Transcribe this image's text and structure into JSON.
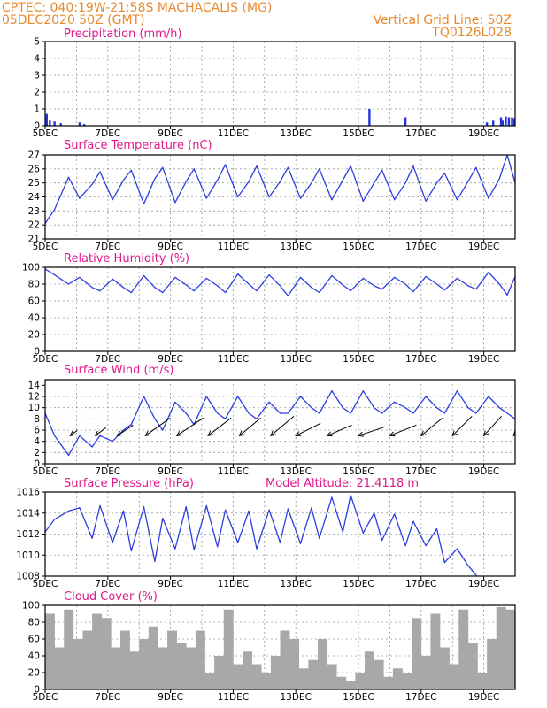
{
  "header": {
    "line1_left": "CPTEC:   040:19W-21:58S   MACHACALIS (MG)",
    "line2_left": "05DEC2020 50Z (GMT)",
    "line1_right": "Vertical Grid Line: 50Z",
    "line2_right": "TQ0126L028"
  },
  "colors": {
    "header": "#e8892a",
    "panel_title": "#e0198c",
    "series_line": "#2a3fe0",
    "precip_bar": "#2233dd",
    "cloud_fill": "#a8a8a8"
  },
  "chart_data": [
    {
      "type": "bar",
      "title": "Precipitation (mm/h)",
      "ylim": [
        0,
        5
      ],
      "yticks": [
        "0",
        "1",
        "2",
        "3",
        "4",
        "5"
      ],
      "xlim_days": [
        5,
        20
      ],
      "xtick_labels": [
        "5DEC",
        "7DEC",
        "9DEC",
        "11DEC",
        "13DEC",
        "15DEC",
        "17DEC",
        "19DEC"
      ],
      "x_days": [
        5.05,
        5.15,
        5.3,
        5.5,
        6.1,
        6.25,
        15.35,
        16.5,
        19.1,
        19.3,
        19.55,
        19.6,
        19.7,
        19.8,
        19.9,
        19.97
      ],
      "values": [
        0.7,
        0.3,
        0.25,
        0.15,
        0.2,
        0.1,
        1.0,
        0.5,
        0.2,
        0.3,
        0.5,
        0.3,
        0.55,
        0.5,
        0.5,
        0.45
      ]
    },
    {
      "type": "line",
      "title": "Surface Temperature (nC)",
      "ylim": [
        21,
        27
      ],
      "yticks": [
        "21",
        "22",
        "23",
        "24",
        "25",
        "26",
        "27"
      ],
      "xlim_days": [
        5,
        20
      ],
      "xtick_labels": [
        "5DEC",
        "7DEC",
        "9DEC",
        "11DEC",
        "13DEC",
        "15DEC",
        "17DEC",
        "19DEC"
      ],
      "x_days": [
        5.0,
        5.3,
        5.75,
        6.1,
        6.5,
        6.75,
        7.15,
        7.5,
        7.75,
        8.15,
        8.5,
        8.75,
        9.15,
        9.5,
        9.75,
        10.15,
        10.5,
        10.75,
        11.15,
        11.5,
        11.75,
        12.15,
        12.5,
        12.75,
        13.15,
        13.5,
        13.75,
        14.15,
        14.5,
        14.75,
        15.15,
        15.5,
        15.75,
        16.15,
        16.5,
        16.75,
        17.15,
        17.5,
        17.75,
        18.15,
        18.5,
        18.75,
        19.15,
        19.5,
        19.75,
        20.0
      ],
      "values": [
        22.1,
        23.1,
        25.4,
        23.9,
        24.9,
        25.8,
        23.8,
        25.2,
        25.9,
        23.5,
        25.3,
        26.1,
        23.6,
        25.1,
        26.0,
        23.9,
        25.2,
        26.3,
        24.0,
        25.1,
        26.2,
        24.0,
        25.1,
        26.1,
        23.9,
        25.0,
        26.0,
        23.8,
        25.2,
        26.2,
        23.7,
        25.0,
        25.9,
        23.8,
        25.0,
        26.2,
        23.7,
        25.0,
        25.7,
        23.8,
        25.1,
        26.1,
        23.9,
        25.3,
        27.0,
        25.0
      ]
    },
    {
      "type": "line",
      "title": "Relative Humidity (%)",
      "ylim": [
        0,
        100
      ],
      "yticks": [
        "0",
        "20",
        "40",
        "60",
        "80",
        "100"
      ],
      "xlim_days": [
        5,
        20
      ],
      "xtick_labels": [
        "5DEC",
        "7DEC",
        "9DEC",
        "11DEC",
        "13DEC",
        "15DEC",
        "17DEC",
        "19DEC"
      ],
      "x_days": [
        5.0,
        5.3,
        5.75,
        6.1,
        6.5,
        6.75,
        7.15,
        7.5,
        7.75,
        8.15,
        8.5,
        8.75,
        9.15,
        9.5,
        9.75,
        10.15,
        10.5,
        10.75,
        11.15,
        11.5,
        11.75,
        12.15,
        12.5,
        12.75,
        13.15,
        13.5,
        13.75,
        14.15,
        14.5,
        14.75,
        15.15,
        15.5,
        15.75,
        16.15,
        16.5,
        16.75,
        17.15,
        17.5,
        17.75,
        18.15,
        18.5,
        18.75,
        19.15,
        19.5,
        19.75,
        20.0
      ],
      "values": [
        98,
        91,
        80,
        88,
        76,
        72,
        86,
        76,
        70,
        90,
        76,
        70,
        88,
        79,
        72,
        87,
        78,
        70,
        92,
        80,
        72,
        91,
        78,
        66,
        88,
        76,
        70,
        90,
        79,
        72,
        87,
        78,
        74,
        88,
        80,
        71,
        89,
        80,
        73,
        87,
        78,
        74,
        94,
        80,
        67,
        89
      ]
    },
    {
      "type": "line",
      "title": "Surface Wind (m/s)",
      "ylim": [
        0,
        15
      ],
      "yticks": [
        "0",
        "2",
        "4",
        "6",
        "8",
        "10",
        "12",
        "14"
      ],
      "xlim_days": [
        5,
        20
      ],
      "xtick_labels": [
        "5DEC",
        "7DEC",
        "9DEC",
        "11DEC",
        "13DEC",
        "15DEC",
        "17DEC",
        "19DEC"
      ],
      "x_days": [
        5.0,
        5.3,
        5.75,
        6.1,
        6.5,
        6.75,
        7.15,
        7.5,
        7.75,
        8.15,
        8.5,
        8.75,
        9.15,
        9.5,
        9.75,
        10.15,
        10.5,
        10.75,
        11.15,
        11.5,
        11.75,
        12.15,
        12.5,
        12.75,
        13.15,
        13.5,
        13.75,
        14.15,
        14.5,
        14.75,
        15.15,
        15.5,
        15.75,
        16.15,
        16.5,
        16.75,
        17.15,
        17.5,
        17.75,
        18.15,
        18.5,
        18.75,
        19.15,
        19.5,
        19.75,
        20.0
      ],
      "values": [
        9,
        5,
        1.5,
        5,
        3,
        5,
        4,
        6,
        7,
        12,
        8,
        6,
        11,
        9,
        7,
        12,
        9,
        8,
        12,
        9,
        8,
        11,
        9,
        9,
        12,
        10,
        9,
        13,
        10,
        9,
        13,
        10,
        9,
        11,
        10,
        9,
        12,
        10,
        9,
        13,
        10,
        9,
        12,
        10,
        9,
        8
      ],
      "wind_barb_days": [
        5.8,
        6.6,
        7.3,
        8.2,
        9.2,
        10.2,
        11.2,
        12.2,
        13.0,
        14.0,
        15.0,
        16.0,
        17.0,
        18.0,
        19.0,
        19.95
      ],
      "wind_barb_dx": [
        8,
        12,
        18,
        28,
        30,
        26,
        24,
        26,
        28,
        28,
        30,
        30,
        24,
        22,
        20,
        18
      ],
      "wind_barb_dy": [
        -6,
        -9,
        -12,
        -20,
        -20,
        -20,
        -20,
        -22,
        -14,
        -12,
        -10,
        -12,
        -20,
        -22,
        -22,
        -20
      ]
    },
    {
      "type": "line",
      "title": "Surface Pressure (hPa)",
      "annotation": "Model Altitude: 21.4118 m",
      "ylim": [
        1008,
        1016
      ],
      "yticks": [
        "1008",
        "1010",
        "1012",
        "1014",
        "1016"
      ],
      "xlim_days": [
        5,
        20
      ],
      "xtick_labels": [
        "5DEC",
        "7DEC",
        "9DEC",
        "11DEC",
        "13DEC",
        "15DEC",
        "17DEC",
        "19DEC"
      ],
      "x_days": [
        5.0,
        5.3,
        5.75,
        6.1,
        6.5,
        6.75,
        7.15,
        7.5,
        7.75,
        8.15,
        8.5,
        8.75,
        9.15,
        9.5,
        9.75,
        10.15,
        10.5,
        10.75,
        11.15,
        11.5,
        11.75,
        12.15,
        12.5,
        12.75,
        13.15,
        13.5,
        13.75,
        14.15,
        14.5,
        14.75,
        15.15,
        15.5,
        15.75,
        16.15,
        16.5,
        16.75,
        17.15,
        17.5,
        17.75,
        18.15,
        18.5,
        18.75
      ],
      "values": [
        1012.2,
        1013.4,
        1014.2,
        1014.5,
        1011.6,
        1014.7,
        1011.2,
        1014.2,
        1010.4,
        1014.6,
        1009.4,
        1013.5,
        1010.6,
        1014.6,
        1010.5,
        1014.7,
        1010.8,
        1014.3,
        1011.2,
        1014.2,
        1010.6,
        1014.3,
        1011.2,
        1014.4,
        1011.1,
        1014.5,
        1011.6,
        1015.5,
        1012.2,
        1015.7,
        1012.1,
        1014.0,
        1011.4,
        1013.9,
        1010.9,
        1013.2,
        1010.9,
        1012.5,
        1009.3,
        1010.6,
        1009.0,
        1008.1
      ]
    },
    {
      "type": "area",
      "title": "Cloud Cover (%)",
      "ylim": [
        0,
        100
      ],
      "yticks": [
        "0",
        "20",
        "40",
        "60",
        "80",
        "100"
      ],
      "xlim_days": [
        5,
        20
      ],
      "xtick_labels": [
        "5DEC",
        "7DEC",
        "9DEC",
        "11DEC",
        "13DEC",
        "15DEC",
        "17DEC",
        "19DEC"
      ],
      "x_days": [
        5.0,
        5.3,
        5.6,
        5.9,
        6.2,
        6.5,
        6.8,
        7.1,
        7.4,
        7.7,
        8.0,
        8.3,
        8.6,
        8.9,
        9.2,
        9.5,
        9.8,
        10.1,
        10.4,
        10.7,
        11.0,
        11.3,
        11.6,
        11.9,
        12.2,
        12.5,
        12.8,
        13.1,
        13.4,
        13.7,
        14.0,
        14.3,
        14.6,
        14.9,
        15.2,
        15.5,
        15.8,
        16.1,
        16.4,
        16.7,
        17.0,
        17.3,
        17.6,
        17.9,
        18.2,
        18.5,
        18.8,
        19.1,
        19.4,
        19.7,
        20.0
      ],
      "values": [
        90,
        50,
        95,
        60,
        70,
        90,
        85,
        50,
        70,
        45,
        60,
        75,
        50,
        70,
        55,
        50,
        70,
        20,
        40,
        95,
        30,
        45,
        30,
        20,
        40,
        70,
        60,
        25,
        35,
        60,
        30,
        15,
        10,
        20,
        45,
        35,
        15,
        25,
        20,
        85,
        40,
        90,
        50,
        30,
        95,
        55,
        20,
        60,
        98,
        95,
        100
      ]
    }
  ]
}
